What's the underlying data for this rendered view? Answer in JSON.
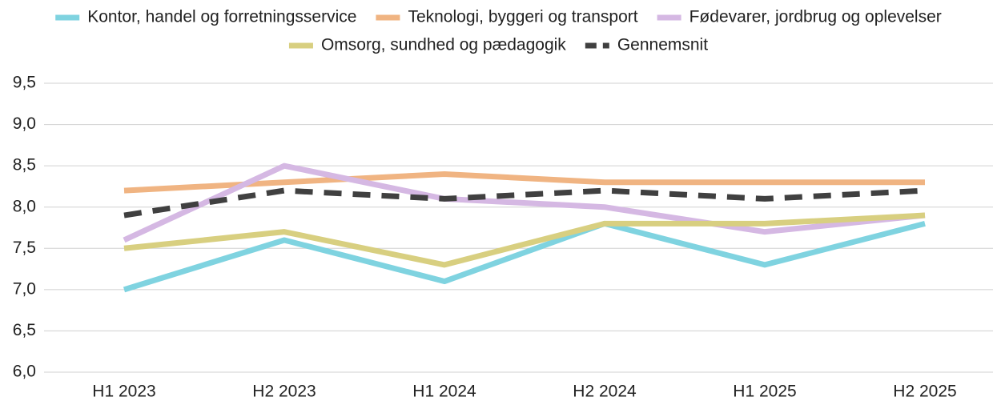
{
  "chart_data": {
    "type": "line",
    "categories": [
      "H1 2023",
      "H2 2023",
      "H1 2024",
      "H2 2024",
      "H1 2025",
      "H2 2025"
    ],
    "series": [
      {
        "name": "Kontor, handel og forretningsservice",
        "color": "#7fd3e0",
        "values": [
          7.0,
          7.6,
          7.1,
          7.8,
          7.3,
          7.8
        ]
      },
      {
        "name": "Teknologi, byggeri og transport",
        "color": "#f0b482",
        "values": [
          8.2,
          8.3,
          8.4,
          8.3,
          8.3,
          8.3
        ]
      },
      {
        "name": "Fødevarer, jordbrug og oplevelser",
        "color": "#d5b8e3",
        "values": [
          7.6,
          8.5,
          8.1,
          8.0,
          7.7,
          7.9
        ]
      },
      {
        "name": "Omsorg, sundhed og pædagogik",
        "color": "#d8cf80",
        "values": [
          7.5,
          7.7,
          7.3,
          7.8,
          7.8,
          7.9
        ]
      },
      {
        "name": "Gennemsnit",
        "color": "#404040",
        "linestyle": "dashed",
        "values": [
          7.9,
          8.2,
          8.1,
          8.2,
          8.1,
          8.2
        ]
      }
    ],
    "ylim": [
      6.0,
      9.5
    ],
    "yticks": [
      {
        "value": 6.0,
        "label": "6,0"
      },
      {
        "value": 6.5,
        "label": "6,5"
      },
      {
        "value": 7.0,
        "label": "7,0"
      },
      {
        "value": 7.5,
        "label": "7,5"
      },
      {
        "value": 8.0,
        "label": "8,0"
      },
      {
        "value": 8.5,
        "label": "8,5"
      },
      {
        "value": 9.0,
        "label": "9,0"
      },
      {
        "value": 9.5,
        "label": "9,5"
      }
    ],
    "grid": true,
    "legend": "top"
  }
}
